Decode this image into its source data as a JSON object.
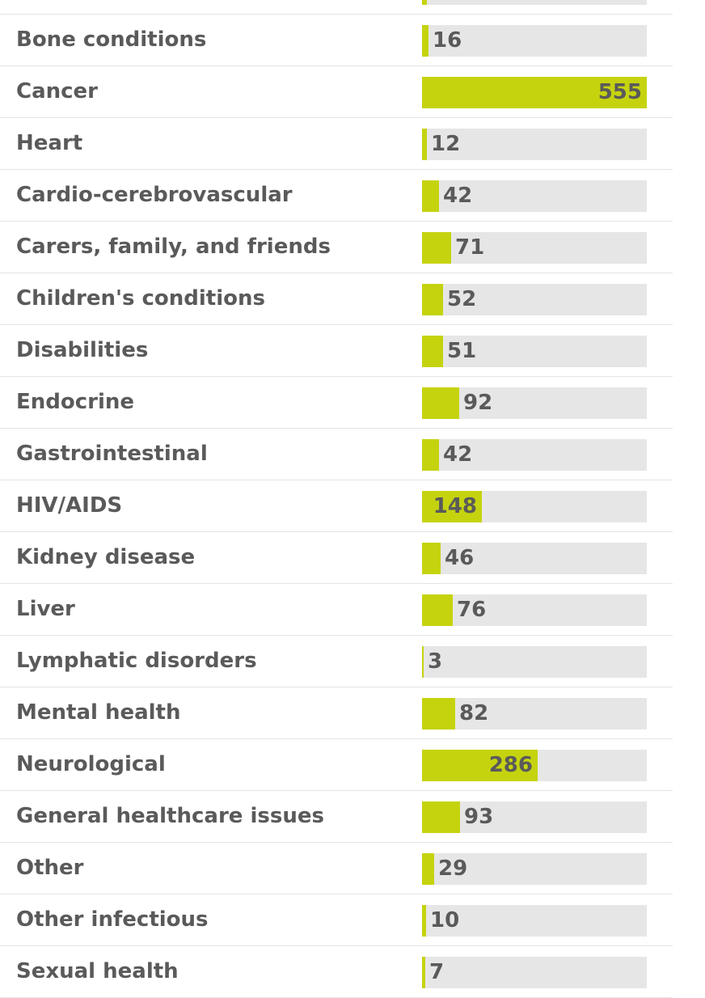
{
  "chart_data": {
    "type": "bar",
    "orientation": "horizontal",
    "categories": [
      "",
      "Bone conditions",
      "Cancer",
      "Heart",
      "Cardio-cerebrovascular",
      "Carers, family, and friends",
      "Children's conditions",
      "Disabilities",
      "Endocrine",
      "Gastrointestinal",
      "HIV/AIDS",
      "Kidney disease",
      "Liver",
      "Lymphatic disorders",
      "Mental health",
      "Neurological",
      "General healthcare issues",
      "Other",
      "Other infectious",
      "Sexual health"
    ],
    "values": [
      11,
      16,
      555,
      12,
      42,
      71,
      52,
      51,
      92,
      42,
      148,
      46,
      76,
      3,
      82,
      286,
      93,
      29,
      10,
      7
    ],
    "value_labels": [
      "",
      "16",
      "555",
      "12",
      "42",
      "71",
      "52",
      "51",
      "92",
      "42",
      "148",
      "46",
      "76",
      "3",
      "82",
      "286",
      "93",
      "29",
      "10",
      "7"
    ],
    "xlim": [
      0,
      555
    ],
    "grid": false,
    "colors": {
      "bar": "#c5d30f",
      "track": "#e6e6e6",
      "text": "#5a5a5a",
      "divider": "#e4e4e4"
    }
  }
}
